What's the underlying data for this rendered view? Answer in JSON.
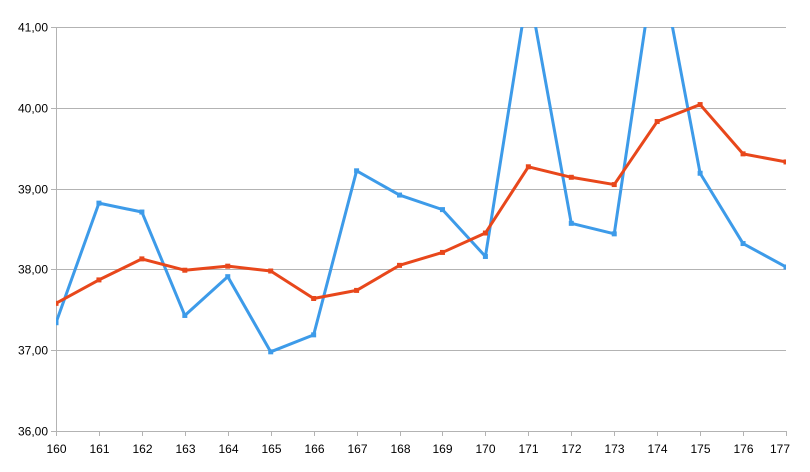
{
  "chart_data": {
    "type": "line",
    "title": "",
    "xlabel": "",
    "ylabel": "",
    "x": [
      160,
      161,
      162,
      163,
      164,
      165,
      166,
      167,
      168,
      169,
      170,
      171,
      172,
      173,
      174,
      175,
      176,
      177
    ],
    "x_tick_labels": [
      "160",
      "161",
      "162",
      "163",
      "164",
      "165",
      "166",
      "167",
      "168",
      "169",
      "170",
      "171",
      "172",
      "173",
      "174",
      "175",
      "176",
      "177"
    ],
    "ylim": [
      36,
      41
    ],
    "y_ticks": [
      36,
      37,
      38,
      39,
      40,
      41
    ],
    "y_tick_labels": [
      "36,00",
      "37,00",
      "38,00",
      "39,00",
      "40,00",
      "41,00"
    ],
    "grid": "horizontal",
    "legend": "none",
    "series": [
      {
        "color": "#3d9be9",
        "values": [
          37.34,
          38.82,
          38.71,
          37.43,
          37.91,
          36.98,
          37.19,
          39.22,
          38.92,
          38.74,
          38.16,
          41.5,
          38.57,
          38.44,
          42.0,
          39.19,
          38.32,
          38.03
        ]
      },
      {
        "color": "#e8471b",
        "values": [
          37.58,
          37.87,
          38.13,
          37.99,
          38.04,
          37.98,
          37.64,
          37.74,
          38.05,
          38.21,
          38.45,
          39.27,
          39.14,
          39.05,
          39.83,
          40.04,
          39.43,
          39.33
        ]
      }
    ]
  }
}
